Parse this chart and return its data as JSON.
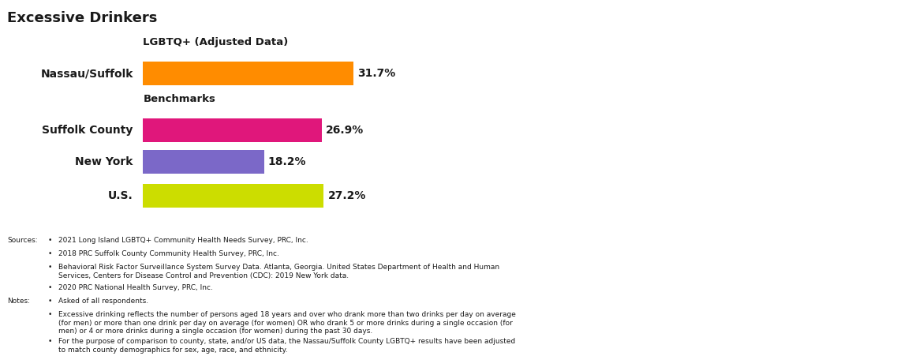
{
  "title": "Excessive Drinkers",
  "title_color": "#1a1a1a",
  "title_fontsize": 13,
  "section_label_lgbtq": "LGBTQ+ (Adjusted Data)",
  "section_label_benchmarks": "Benchmarks",
  "categories": [
    "Nassau/Suffolk",
    "Suffolk County",
    "New York",
    "U.S."
  ],
  "values": [
    31.7,
    26.9,
    18.2,
    27.2
  ],
  "labels": [
    "31.7%",
    "26.9%",
    "18.2%",
    "27.2%"
  ],
  "colors": [
    "#FF8C00",
    "#E0177B",
    "#7B68C8",
    "#CCDD00"
  ],
  "bar_height": 0.52,
  "xlim": [
    0,
    50
  ],
  "background_color": "#ffffff",
  "text_color": "#1a1a1a",
  "font_size_labels": 10,
  "font_size_category": 10,
  "font_size_section": 9.5,
  "font_size_footnote": 6.5,
  "sources_text": "Sources:",
  "notes_text": "Notes:",
  "sources_bullets": [
    "2021 Long Island LGBTQ+ Community Health Needs Survey, PRC, Inc.",
    "2018 PRC Suffolk County Community Health Survey, PRC, Inc.",
    "Behavioral Risk Factor Surveillance System Survey Data. Atlanta, Georgia. United States Department of Health and Human\nServices, Centers for Disease Control and Prevention (CDC): 2019 New York data.",
    "2020 PRC National Health Survey, PRC, Inc."
  ],
  "notes_bullets": [
    "Asked of all respondents.",
    "Excessive drinking reflects the number of persons aged 18 years and over who drank more than two drinks per day on average\n(for men) or more than one drink per day on average (for women) OR who drank 5 or more drinks during a single occasion (for\nmen) or 4 or more drinks during a single occasion (for women) during the past 30 days.",
    "For the purpose of comparison to county, state, and/or US data, the Nassau/Suffolk County LGBTQ+ results have been adjusted\nto match county demographics for sex, age, race, and ethnicity."
  ]
}
